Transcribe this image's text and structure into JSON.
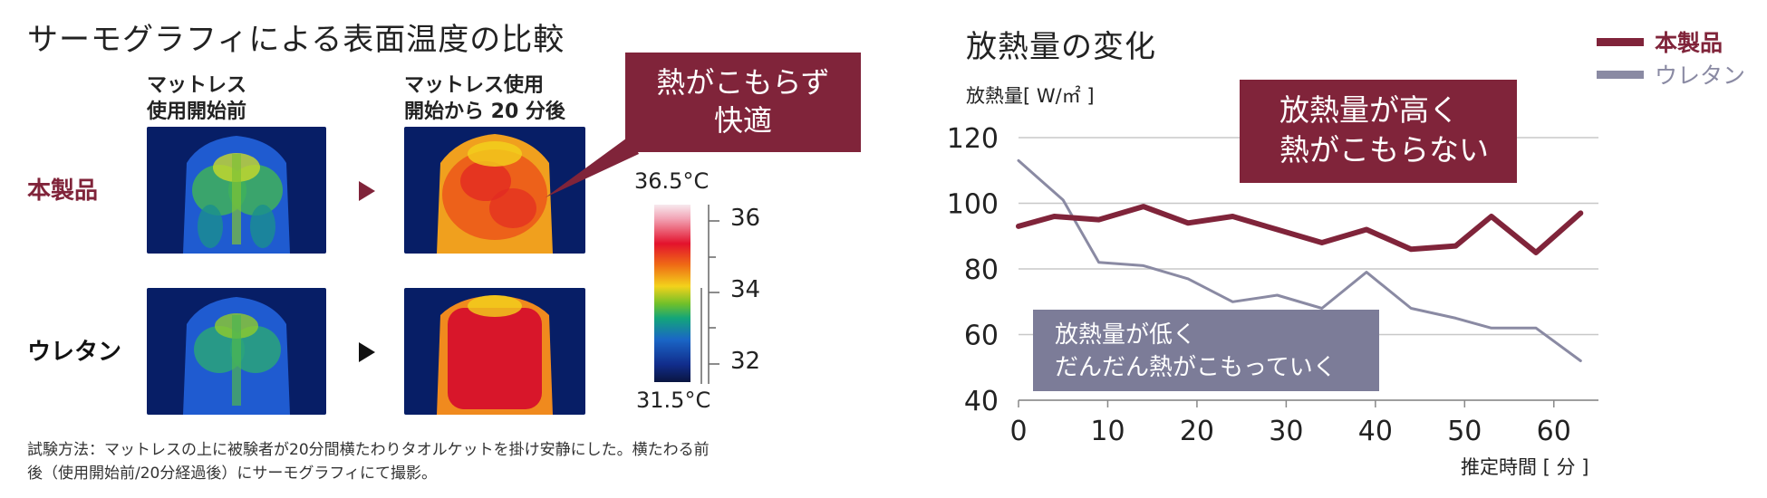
{
  "left": {
    "title": "サーモグラフィによる表面温度の比較",
    "col_before": [
      "マットレス",
      "使用開始前"
    ],
    "col_after": [
      "マットレス使用",
      "開始から 20 分後"
    ],
    "row_product": "本製品",
    "row_urethane": "ウレタン",
    "callout": [
      "熱がこもらず",
      "快適"
    ],
    "scale_top": "36.5°C",
    "scale_bottom": "31.5°C",
    "scale_ticks": [
      "36",
      "34",
      "32"
    ],
    "footnote": [
      "試験方法：マットレスの上に被験者が20分間横たわりタオルケットを掛け安静にした。横たわる前",
      "後（使用開始前/20分経過後）にサーモグラフィにて撮影。"
    ],
    "colors": {
      "product": "#80243a",
      "urethane": "#222222"
    }
  },
  "chart_data": {
    "type": "line",
    "title": "放熱量の変化",
    "ylabel": "放熱量[ W/㎡ ]",
    "xlabel": "推定時間 [ 分 ]",
    "xlim": [
      0,
      65
    ],
    "ylim": [
      40,
      120
    ],
    "xticks": [
      "0",
      "10",
      "20",
      "30",
      "40",
      "50",
      "60"
    ],
    "yticks": [
      "40",
      "60",
      "80",
      "100",
      "120"
    ],
    "grid": true,
    "legend_position": "top-right",
    "series": [
      {
        "name": "本製品",
        "color": "#80243a",
        "x": [
          0,
          4,
          9,
          14,
          19,
          24,
          29,
          34,
          39,
          44,
          49,
          53,
          58,
          63
        ],
        "y": [
          93,
          96,
          95,
          99,
          94,
          96,
          92,
          88,
          92,
          86,
          87,
          96,
          85,
          97
        ]
      },
      {
        "name": "ウレタン",
        "color": "#8a8aa3",
        "x": [
          0,
          5,
          9,
          14,
          19,
          24,
          29,
          34,
          39,
          44,
          49,
          53,
          58,
          63
        ],
        "y": [
          113,
          101,
          82,
          81,
          77,
          70,
          72,
          68,
          79,
          68,
          65,
          62,
          62,
          52
        ]
      }
    ],
    "annotations": [
      {
        "text": [
          "放熱量が高く",
          "熱がこもらない"
        ],
        "color": "#80243a"
      },
      {
        "text": [
          "放熱量が低く",
          "だんだん熱がこもっていく"
        ],
        "color": "#7c7c98"
      }
    ]
  }
}
